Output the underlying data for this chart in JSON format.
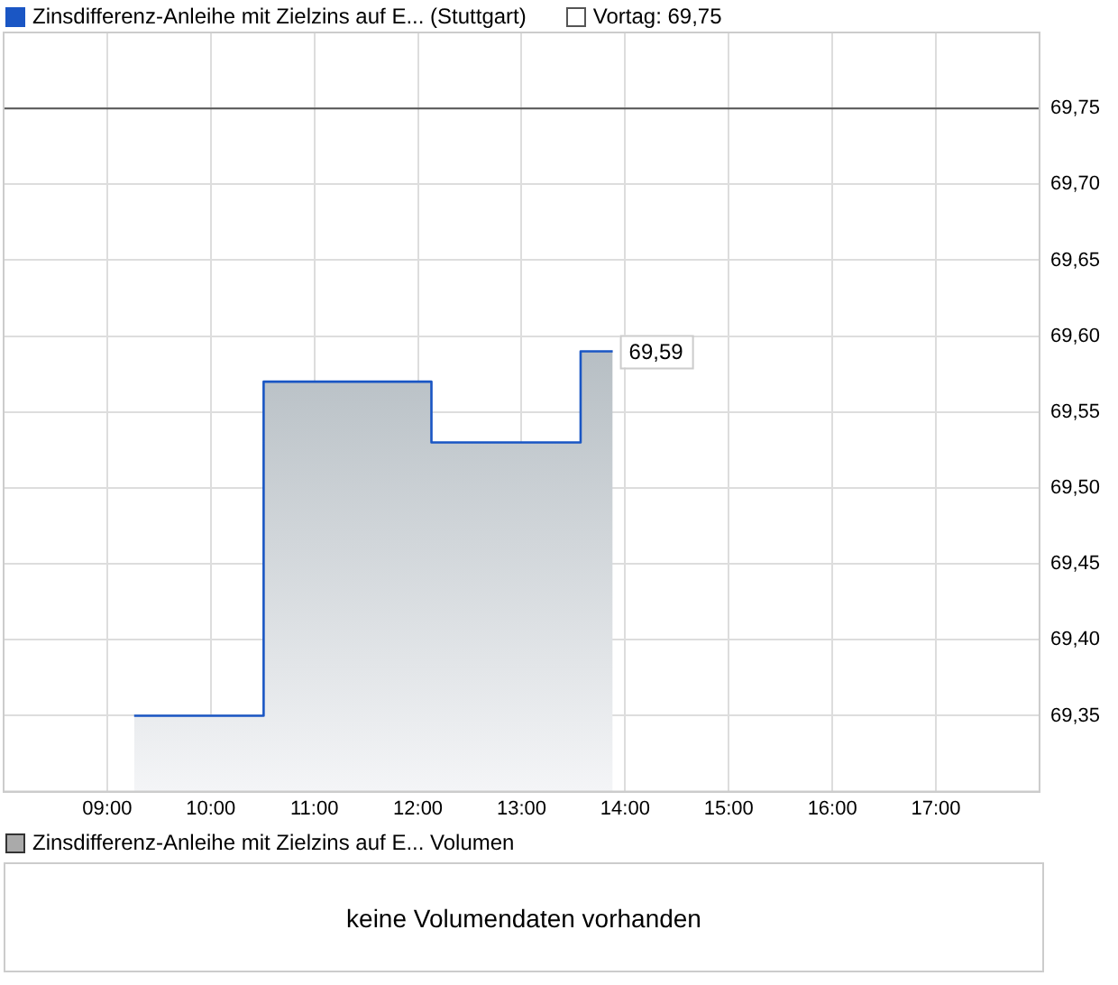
{
  "chart_data": [
    {
      "type": "step",
      "legend": "top left",
      "grid": true,
      "x": [
        9.26,
        10.51,
        12.13,
        13.57,
        13.88
      ],
      "series": [
        {
          "type": "area",
          "name": "Zinsdifferenz-Anleihe mit Zielzins auf E... (Stuttgart)",
          "color": "#1a56c4",
          "values": [
            69.35,
            69.57,
            69.53,
            69.59,
            69.59
          ],
          "value_labels": [
            null,
            null,
            null,
            null,
            "69,59"
          ]
        }
      ],
      "xlim": [
        8,
        18
      ],
      "xticks": [
        {
          "value": 9,
          "label": "09:00"
        },
        {
          "value": 10,
          "label": "10:00"
        },
        {
          "value": 11,
          "label": "11:00"
        },
        {
          "value": 12,
          "label": "12:00"
        },
        {
          "value": 13,
          "label": "13:00"
        },
        {
          "value": 14,
          "label": "14:00"
        },
        {
          "value": 15,
          "label": "15:00"
        },
        {
          "value": 16,
          "label": "16:00"
        },
        {
          "value": 17,
          "label": "17:00"
        }
      ],
      "ylim": [
        69.3,
        69.8
      ],
      "yticks": [
        {
          "value": 69.35,
          "label": "69,35"
        },
        {
          "value": 69.4,
          "label": "69,40"
        },
        {
          "value": 69.45,
          "label": "69,45"
        },
        {
          "value": 69.5,
          "label": "69,50"
        },
        {
          "value": 69.55,
          "label": "69,55"
        },
        {
          "value": 69.6,
          "label": "69,60"
        },
        {
          "value": 69.65,
          "label": "69,65"
        },
        {
          "value": 69.7,
          "label": "69,70"
        },
        {
          "value": 69.75,
          "label": "69,75"
        }
      ],
      "ref_lines": [
        {
          "axis": "y",
          "value": 69.75,
          "label": "Vortag: 69,75",
          "color": "#555555"
        }
      ]
    },
    {
      "type": "other",
      "title": "Zinsdifferenz-Anleihe mit Zielzins auf E... Volumen",
      "annotations": [
        "keine Volumendaten vorhanden"
      ]
    }
  ]
}
